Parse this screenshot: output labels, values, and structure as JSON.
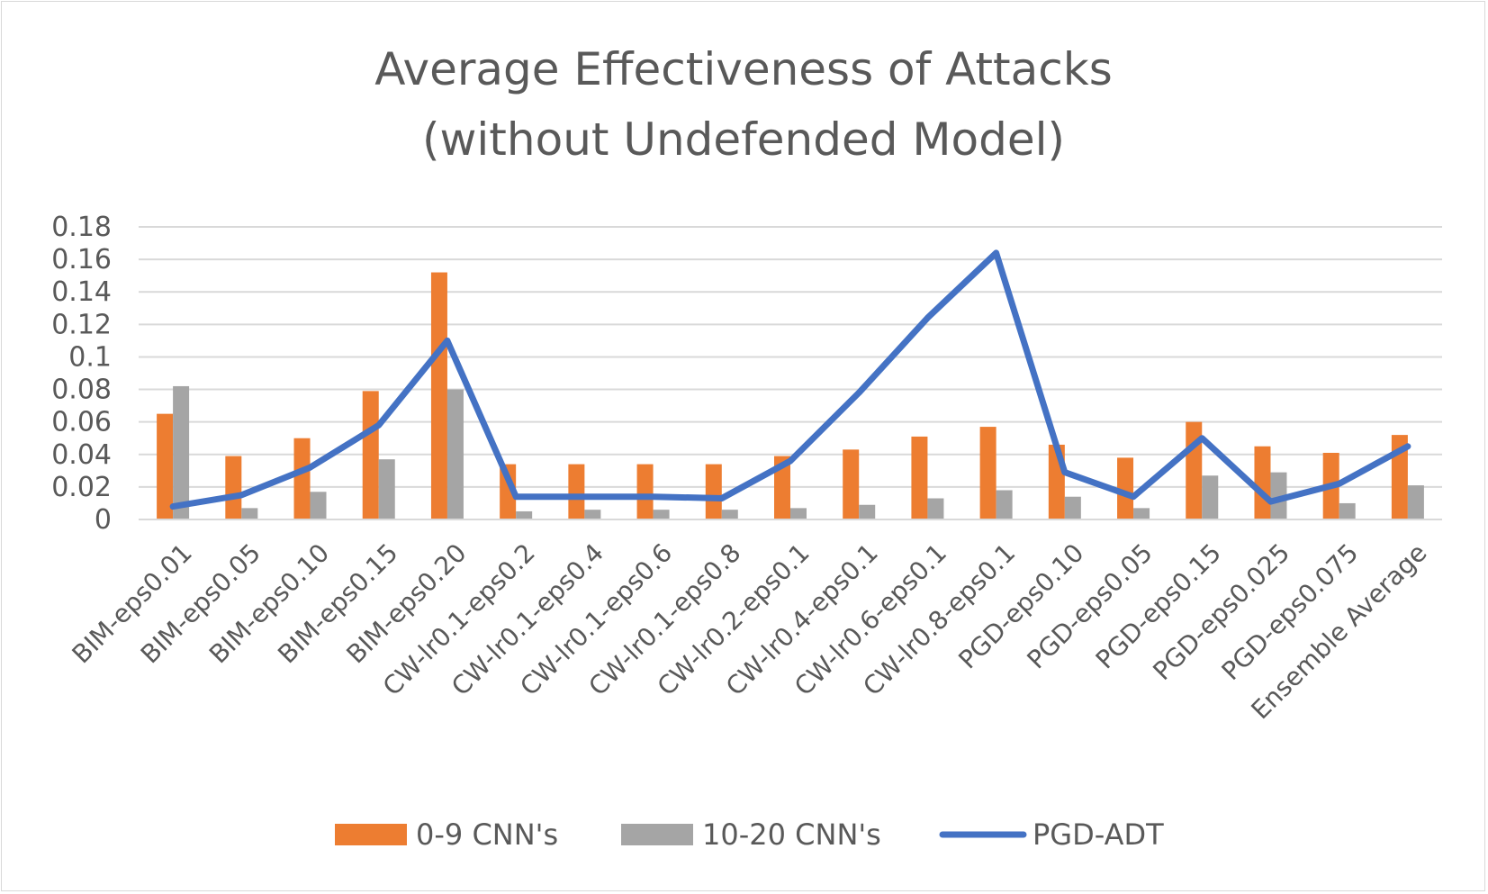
{
  "chart_data": {
    "type": "bar",
    "title_lines": [
      "Average Effectiveness of Attacks",
      "(without Undefended Model)"
    ],
    "xlabel": "",
    "ylabel": "",
    "ylim": [
      0,
      0.18
    ],
    "yticks": [
      "0",
      "0.02",
      "0.04",
      "0.06",
      "0.08",
      "0.1",
      "0.12",
      "0.14",
      "0.16",
      "0.18"
    ],
    "grid": true,
    "legend_position": "bottom",
    "categories": [
      "BIM-eps0.01",
      "BIM-eps0.05",
      "BIM-eps0.10",
      "BIM-eps0.15",
      "BIM-eps0.20",
      "CW-lr0.1-eps0.2",
      "CW-lr0.1-eps0.4",
      "CW-lr0.1-eps0.6",
      "CW-lr0.1-eps0.8",
      "CW-lr0.2-eps0.1",
      "CW-lr0.4-eps0.1",
      "CW-lr0.6-eps0.1",
      "CW-lr0.8-eps0.1",
      "PGD-eps0.10",
      "PGD-eps0.05",
      "PGD-eps0.15",
      "PGD-eps0.025",
      "PGD-eps0.075",
      "Ensemble Average"
    ],
    "series": [
      {
        "name": "0-9 CNN's",
        "kind": "bar",
        "color": "#ED7D31",
        "values": [
          0.065,
          0.039,
          0.05,
          0.079,
          0.152,
          0.034,
          0.034,
          0.034,
          0.034,
          0.039,
          0.043,
          0.051,
          0.057,
          0.046,
          0.038,
          0.06,
          0.045,
          0.041,
          0.052
        ]
      },
      {
        "name": "10-20 CNN's",
        "kind": "bar",
        "color": "#A5A5A5",
        "values": [
          0.082,
          0.007,
          0.017,
          0.037,
          0.08,
          0.005,
          0.006,
          0.006,
          0.006,
          0.007,
          0.009,
          0.013,
          0.018,
          0.014,
          0.007,
          0.027,
          0.029,
          0.01,
          0.021
        ]
      },
      {
        "name": "PGD-ADT",
        "kind": "line",
        "color": "#4472C4",
        "values": [
          0.008,
          0.015,
          0.032,
          0.058,
          0.11,
          0.014,
          0.014,
          0.014,
          0.013,
          0.036,
          0.078,
          0.124,
          0.164,
          0.029,
          0.014,
          0.05,
          0.011,
          0.022,
          0.045
        ]
      }
    ]
  }
}
